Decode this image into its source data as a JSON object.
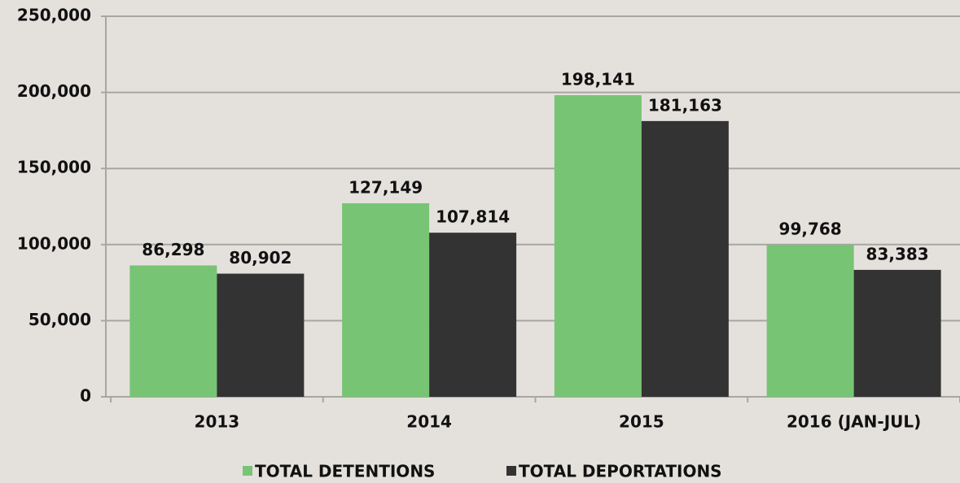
{
  "chart_data": {
    "type": "bar",
    "categories": [
      "2013",
      "2014",
      "2015",
      "2016 (JAN-JUL)"
    ],
    "series": [
      {
        "name": "TOTAL DETENTIONS",
        "color": "#77c474",
        "values": [
          86298,
          127149,
          198141,
          99768
        ],
        "value_labels": [
          "86,298",
          "127,149",
          "198,141",
          "99,768"
        ]
      },
      {
        "name": "TOTAL DEPORTATIONS",
        "color": "#333333",
        "values": [
          80902,
          107814,
          181163,
          83383
        ],
        "value_labels": [
          "80,902",
          "107,814",
          "181,163",
          "83,383"
        ]
      }
    ],
    "ylim": [
      0,
      250000
    ],
    "yticks": [
      0,
      {
        "value": 50000,
        "label": "50,000"
      },
      {
        "value": 100000,
        "label": "100,000"
      },
      {
        "value": 150000,
        "label": "150,000"
      },
      {
        "value": 200000,
        "label": "200,000"
      },
      {
        "value": 250000,
        "label": "250,000"
      }
    ],
    "grid": true,
    "legend": "bottom"
  }
}
